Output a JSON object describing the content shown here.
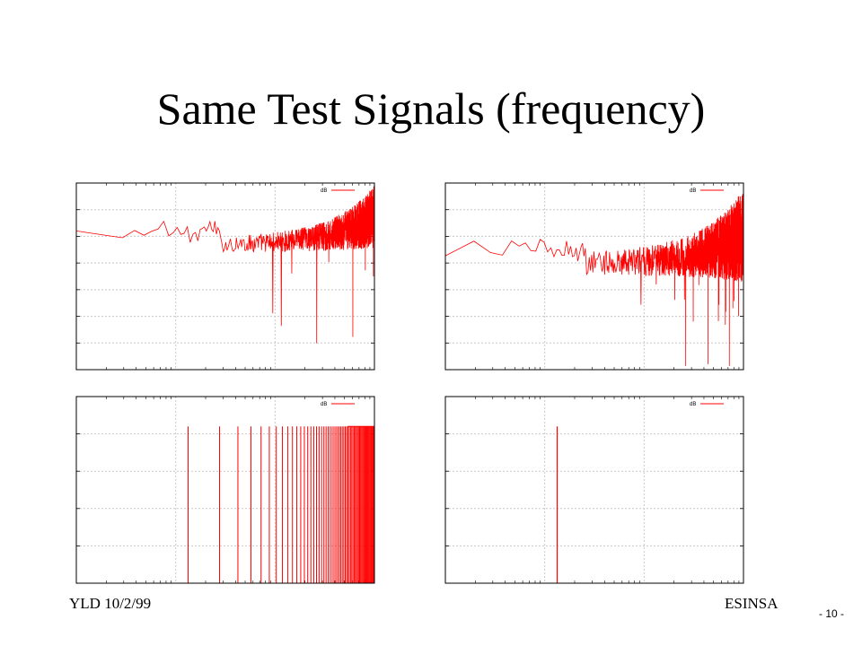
{
  "slide": {
    "title": "Same Test Signals (frequency)",
    "footer_left": "YLD 10/2/99",
    "footer_right": "ESINSA",
    "page_number": "- 10 -"
  },
  "colors": {
    "series": "#ff0000",
    "frame": "#000000",
    "grid": "#c8c8c8"
  },
  "chart_data": [
    {
      "type": "line",
      "title": "",
      "xlabel": "",
      "ylabel": "",
      "x_scale": "log",
      "grid": true,
      "legend_position": "top-right",
      "pattern": "noisy-spectrum",
      "series": [
        {
          "name": "dB"
        }
      ],
      "points": 1200,
      "base_level": 0.82,
      "spread": 0.28,
      "dip_depth": 0.6
    },
    {
      "type": "line",
      "title": "",
      "xlabel": "",
      "ylabel": "",
      "x_scale": "log",
      "grid": true,
      "legend_position": "top-right",
      "pattern": "noisy-spectrum",
      "series": [
        {
          "name": "dB"
        }
      ],
      "points": 1400,
      "base_level": 0.72,
      "spread": 0.42,
      "dip_depth": 0.75
    },
    {
      "type": "line",
      "title": "",
      "xlabel": "",
      "ylabel": "",
      "x_scale": "log",
      "grid": true,
      "legend_position": "top-right",
      "pattern": "harmonic-spikes",
      "series": [
        {
          "name": "dB"
        }
      ],
      "spike_level": 0.84,
      "first_spike": 1,
      "spike_count": 60
    },
    {
      "type": "line",
      "title": "",
      "xlabel": "",
      "ylabel": "",
      "x_scale": "log",
      "grid": true,
      "legend_position": "top-right",
      "pattern": "single-spike",
      "series": [
        {
          "name": "dB"
        }
      ],
      "spike_level": 0.84,
      "spike_at": 1
    }
  ]
}
